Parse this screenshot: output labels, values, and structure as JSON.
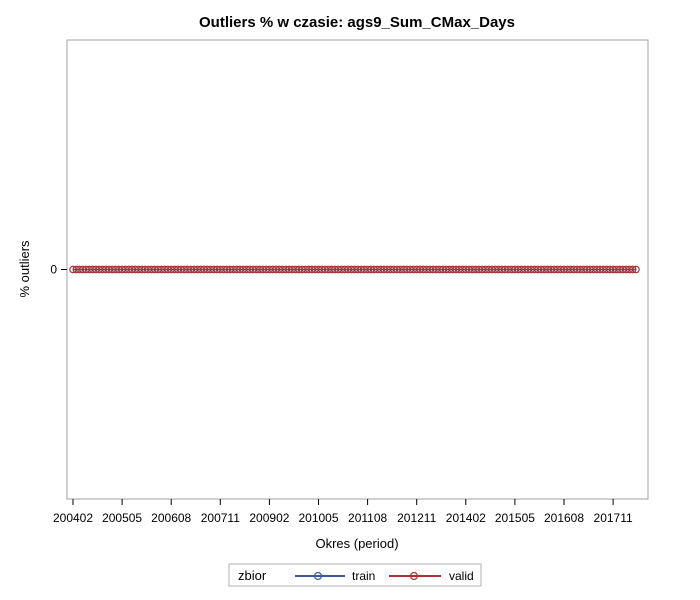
{
  "chart_data": {
    "type": "line",
    "title": "Outliers % w czasie: ags9_Sum_CMax_Days",
    "xlabel": "Okres (period)",
    "ylabel": "% outliers",
    "x_start": "200402",
    "x_end": "201806",
    "x_tick_labels": [
      "200402",
      "200505",
      "200608",
      "200711",
      "200902",
      "201005",
      "201108",
      "201211",
      "201402",
      "201505",
      "201608",
      "201711"
    ],
    "y_tick_labels": [
      "0"
    ],
    "ylim": [
      -1,
      1
    ],
    "series": [
      {
        "name": "train",
        "color": "#3a5a9a",
        "constant_value": 0
      },
      {
        "name": "valid",
        "color": "#a83232",
        "constant_value": 0
      }
    ],
    "legend": {
      "title": "zbior",
      "position": "bottom-center"
    },
    "grid": false
  }
}
